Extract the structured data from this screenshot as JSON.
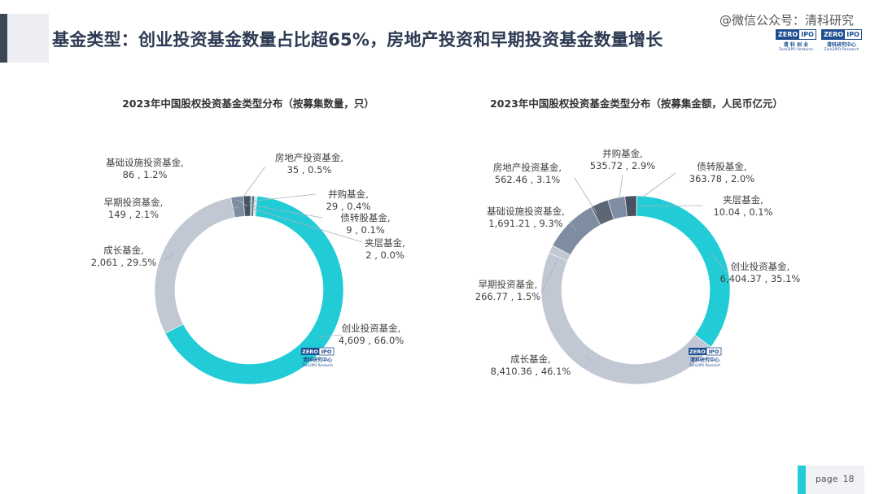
{
  "header": {
    "title": "基金类型：创业投资基金数量占比超65%，房地产投资和早期投资基金数量增长",
    "watermark": "@微信公众号：清科研究"
  },
  "logos": [
    {
      "left": "ZERO",
      "right": "IPO",
      "cn": "清 科 创 业",
      "en": "Zero2IPO Ventures"
    },
    {
      "left": "ZERO",
      "right": "IPO",
      "cn": "清科研究中心",
      "en": "Zero2IPO Research"
    }
  ],
  "footer": {
    "page_label": "page",
    "page_number": "18"
  },
  "colors": {
    "teal": "#22ccd6",
    "light_gray": "#c2c8d3",
    "blue_gray": "#7f8da3",
    "slate": "#5d6675",
    "dark_slate": "#4a5160"
  },
  "chart_data": [
    {
      "type": "pie",
      "donut": true,
      "title": "2023年中国股权投资基金类型分布（按募集数量，只）",
      "series": [
        {
          "name": "创业投资基金",
          "value": 4609,
          "percent": "66.0%",
          "label": "创业投资基金,",
          "value_label": "4,609 , 66.0%"
        },
        {
          "name": "成长基金",
          "value": 2061,
          "percent": "29.5%",
          "label": "成长基金,",
          "value_label": "2,061 , 29.5%"
        },
        {
          "name": "早期投资基金",
          "value": 149,
          "percent": "2.1%",
          "label": "早期投资基金,",
          "value_label": "149 , 2.1%"
        },
        {
          "name": "基础设施投资基金",
          "value": 86,
          "percent": "1.2%",
          "label": "基础设施投资基金,",
          "value_label": "86 , 1.2%"
        },
        {
          "name": "房地产投资基金",
          "value": 35,
          "percent": "0.5%",
          "label": "房地产投资基金,",
          "value_label": "35 , 0.5%"
        },
        {
          "name": "并购基金",
          "value": 29,
          "percent": "0.4%",
          "label": "并购基金,",
          "value_label": "29 , 0.4%"
        },
        {
          "name": "债转股基金",
          "value": 9,
          "percent": "0.1%",
          "label": "债转股基金,",
          "value_label": "9 , 0.1%"
        },
        {
          "name": "夹层基金",
          "value": 2,
          "percent": "0.0%",
          "label": "夹层基金,",
          "value_label": "2 , 0.0%"
        }
      ]
    },
    {
      "type": "pie",
      "donut": true,
      "title": "2023年中国股权投资基金类型分布（按募集金额，人民币亿元）",
      "series": [
        {
          "name": "创业投资基金",
          "value": 6404.37,
          "percent": "35.1%",
          "label": "创业投资基金,",
          "value_label": "6,404.37 , 35.1%"
        },
        {
          "name": "成长基金",
          "value": 8410.36,
          "percent": "46.1%",
          "label": "成长基金,",
          "value_label": "8,410.36 , 46.1%"
        },
        {
          "name": "早期投资基金",
          "value": 266.77,
          "percent": "1.5%",
          "label": "早期投资基金,",
          "value_label": "266.77 , 1.5%"
        },
        {
          "name": "基础设施投资基金",
          "value": 1691.21,
          "percent": "9.3%",
          "label": "基础设施投资基金,",
          "value_label": "1,691.21 , 9.3%"
        },
        {
          "name": "房地产投资基金",
          "value": 562.46,
          "percent": "3.1%",
          "label": "房地产投资基金,",
          "value_label": "562.46 , 3.1%"
        },
        {
          "name": "并购基金",
          "value": 535.72,
          "percent": "2.9%",
          "label": "并购基金,",
          "value_label": "535.72 , 2.9%"
        },
        {
          "name": "债转股基金",
          "value": 363.78,
          "percent": "2.0%",
          "label": "债转股基金,",
          "value_label": "363.78 , 2.0%"
        },
        {
          "name": "夹层基金",
          "value": 10.04,
          "percent": "0.1%",
          "label": "夹层基金,",
          "value_label": "10.04 , 0.1%"
        }
      ]
    }
  ]
}
